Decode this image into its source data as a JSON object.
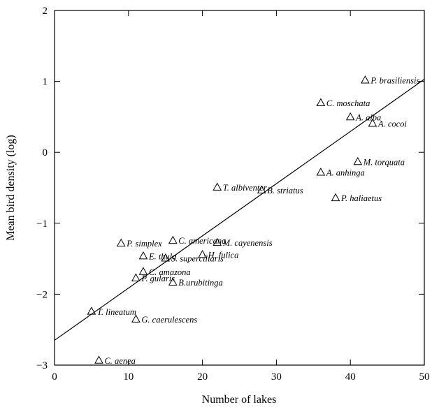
{
  "chart_data": {
    "type": "scatter",
    "xlabel": "Number of lakes",
    "ylabel": "Mean bird density (log)",
    "xlim": [
      0,
      50
    ],
    "ylim": [
      -3,
      2
    ],
    "xticks": [
      "0",
      "10",
      "20",
      "30",
      "40",
      "50"
    ],
    "yticks": [
      "−3",
      "−2",
      "−1",
      "0",
      "1",
      "2"
    ],
    "grid": false,
    "marker": "open-triangle",
    "trend_line": {
      "x": [
        0,
        50
      ],
      "y": [
        -2.65,
        1.03
      ]
    },
    "points": [
      {
        "label": "P. brasiliensis",
        "x": 42,
        "y": 1.02
      },
      {
        "label": "C. moschata",
        "x": 36,
        "y": 0.7
      },
      {
        "label": "A. alba",
        "x": 40,
        "y": 0.5
      },
      {
        "label": "A. cocoi",
        "x": 43,
        "y": 0.41
      },
      {
        "label": "M. torquata",
        "x": 41,
        "y": -0.13
      },
      {
        "label": "A. anhinga",
        "x": 36,
        "y": -0.28
      },
      {
        "label": "T. albiventer",
        "x": 22,
        "y": -0.49
      },
      {
        "label": "B. striatus",
        "x": 28,
        "y": -0.53
      },
      {
        "label": "P. haliaetus",
        "x": 38,
        "y": -0.64
      },
      {
        "label": "P. simplex",
        "x": 9,
        "y": -1.28
      },
      {
        "label": "C. americana",
        "x": 16,
        "y": -1.24
      },
      {
        "label": "M. cayenensis",
        "x": 22,
        "y": -1.27
      },
      {
        "label": "E. thula",
        "x": 12,
        "y": -1.46
      },
      {
        "label": "S. superciliaris",
        "x": 15,
        "y": -1.49
      },
      {
        "label": "H. fulica",
        "x": 20,
        "y": -1.44
      },
      {
        "label": "C. amazona",
        "x": 12,
        "y": -1.68
      },
      {
        "label": "P. gularis",
        "x": 11,
        "y": -1.77
      },
      {
        "label": "B.urubitinga",
        "x": 16,
        "y": -1.83
      },
      {
        "label": "T. lineatum",
        "x": 5,
        "y": -2.24
      },
      {
        "label": "G. caerulescens",
        "x": 11,
        "y": -2.35
      },
      {
        "label": "C. aenea",
        "x": 6,
        "y": -2.93
      }
    ]
  }
}
